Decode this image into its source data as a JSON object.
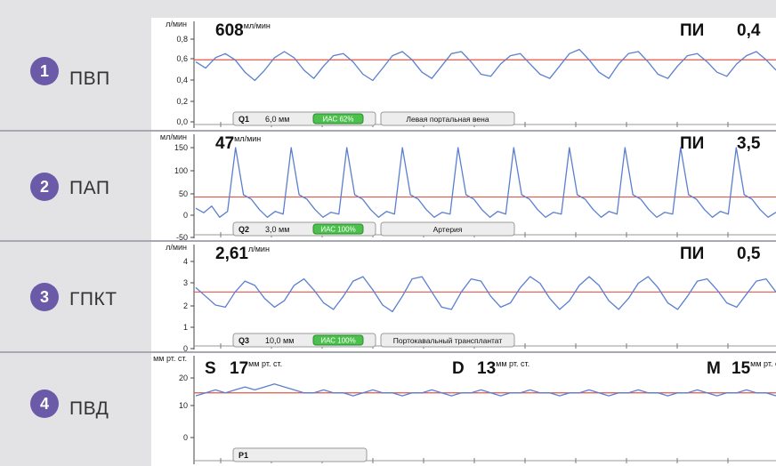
{
  "rows": [
    {
      "num": "1",
      "label": "ПВП"
    },
    {
      "num": "2",
      "label": "ПАП"
    },
    {
      "num": "3",
      "label": "ГПКТ"
    },
    {
      "num": "4",
      "label": "ПВД"
    }
  ],
  "colors": {
    "trace": "#5b7fd0",
    "reference": "#e0584a",
    "badge": "#6a5aa8",
    "ias_green": "#4cc04c"
  },
  "chart_data": [
    {
      "type": "line",
      "unit": "л/мин",
      "yticks": [
        "0,8",
        "0,6",
        "0,4",
        "0,2",
        "0,0"
      ],
      "ylim": [
        0,
        0.9
      ],
      "reading_value": "608",
      "reading_unit": "мл/мин",
      "pi_label": "ПИ",
      "pi_value": "0,4",
      "probe": "Q1",
      "diameter": "6,0 мм",
      "ias": "ИАС 62%",
      "vessel": "Левая портальная вена",
      "reference_level": 0.6,
      "series": [
        {
          "values": [
            0.58,
            0.52,
            0.62,
            0.66,
            0.6,
            0.48,
            0.4,
            0.5,
            0.62,
            0.68,
            0.62,
            0.5,
            0.42,
            0.54,
            0.64,
            0.66,
            0.58,
            0.46,
            0.4,
            0.52,
            0.64,
            0.68,
            0.6,
            0.48,
            0.42,
            0.54,
            0.66,
            0.68,
            0.58,
            0.46,
            0.44,
            0.56,
            0.64,
            0.66,
            0.56,
            0.46,
            0.42,
            0.54,
            0.66,
            0.7,
            0.6,
            0.48,
            0.42,
            0.56,
            0.66,
            0.68,
            0.58,
            0.46,
            0.42,
            0.54,
            0.64,
            0.66,
            0.58,
            0.48,
            0.44,
            0.56,
            0.64,
            0.68,
            0.6,
            0.5
          ]
        }
      ]
    },
    {
      "type": "line",
      "unit": "мл/мин",
      "yticks": [
        "150",
        "100",
        "50",
        "0",
        "-50"
      ],
      "ylim": [
        -55,
        175
      ],
      "reading_value": "47",
      "reading_unit": "мл/мин",
      "pi_label": "ПИ",
      "pi_value": "3,5",
      "probe": "Q2",
      "diameter": "3,0 мм",
      "ias": "ИАС 100%",
      "vessel": "Артерия",
      "reference_level": 40,
      "series": [
        {
          "values": [
            15,
            5,
            20,
            -5,
            8,
            150,
            45,
            35,
            12,
            -5,
            8,
            2,
            150,
            45,
            35,
            12,
            -5,
            6,
            2,
            150,
            45,
            35,
            12,
            -5,
            8,
            2,
            150,
            45,
            35,
            12,
            -5,
            6,
            2,
            150,
            45,
            35,
            12,
            -5,
            8,
            2,
            150,
            45,
            35,
            12,
            -5,
            6,
            2,
            150,
            45,
            35,
            12,
            -5,
            8,
            2,
            150,
            45,
            35,
            12,
            -5,
            6,
            2,
            150,
            45,
            35,
            12,
            -5,
            8,
            2,
            150,
            45,
            35,
            12,
            -5,
            6
          ]
        }
      ]
    },
    {
      "type": "line",
      "unit": "л/мин",
      "yticks": [
        "4",
        "3",
        "2",
        "1",
        "0"
      ],
      "ylim": [
        0,
        4.5
      ],
      "reading_value": "2,61",
      "reading_unit": "л/мин",
      "pi_label": "ПИ",
      "pi_value": "0,5",
      "probe": "Q3",
      "diameter": "10,0 мм",
      "ias": "ИАС 100%",
      "vessel": "Портокавальный трансплантат",
      "reference_level": 2.6,
      "series": [
        {
          "values": [
            2.8,
            2.4,
            2.0,
            1.9,
            2.6,
            3.1,
            2.9,
            2.3,
            1.9,
            2.2,
            2.9,
            3.2,
            2.7,
            2.1,
            1.8,
            2.4,
            3.1,
            3.3,
            2.7,
            2.0,
            1.7,
            2.4,
            3.2,
            3.3,
            2.6,
            1.9,
            1.8,
            2.6,
            3.2,
            3.1,
            2.4,
            1.9,
            2.1,
            2.8,
            3.3,
            3.0,
            2.3,
            1.8,
            2.2,
            2.9,
            3.3,
            2.9,
            2.2,
            1.8,
            2.3,
            3.0,
            3.3,
            2.8,
            2.1,
            1.8,
            2.4,
            3.1,
            3.2,
            2.7,
            2.1,
            1.9,
            2.5,
            3.1,
            3.2,
            2.6
          ]
        }
      ]
    },
    {
      "type": "line",
      "unit": "мм рт. ст.",
      "yticks": [
        "20",
        "10",
        "0"
      ],
      "ylim": [
        -6,
        25
      ],
      "systolic_label": "S",
      "systolic_value": "17",
      "diastolic_label": "D",
      "diastolic_value": "13",
      "mean_label": "M",
      "mean_value": "15",
      "value_unit": "мм рт. ст.",
      "probe": "P1",
      "reference_level": 15,
      "series": [
        {
          "values": [
            14,
            15,
            16,
            15,
            16,
            17,
            16,
            17,
            18,
            17,
            16,
            15,
            15,
            16,
            15,
            15,
            14,
            15,
            16,
            15,
            15,
            14,
            15,
            15,
            16,
            15,
            14,
            15,
            15,
            16,
            15,
            14,
            15,
            15,
            16,
            15,
            15,
            14,
            15,
            15,
            16,
            15,
            14,
            15,
            15,
            16,
            15,
            15,
            14,
            15,
            15,
            16,
            15,
            14,
            15,
            15,
            16,
            15,
            15,
            14
          ]
        }
      ]
    }
  ]
}
